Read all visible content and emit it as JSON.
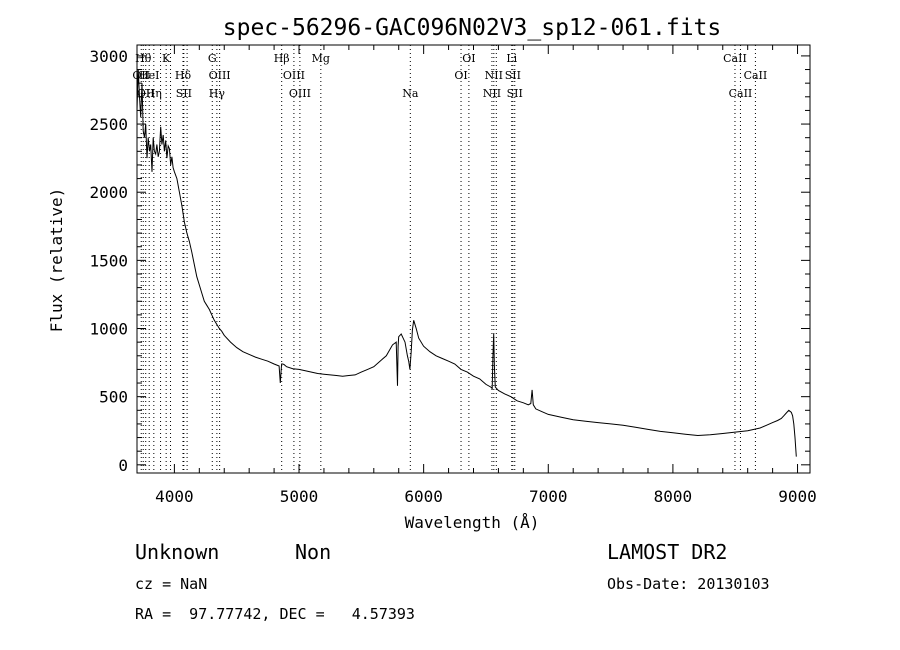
{
  "chart_data": {
    "type": "line",
    "title": "spec-56296-GAC096N02V3_sp12-061.fits",
    "xlabel": "Wavelength (Å)",
    "ylabel": "Flux (relative)",
    "xlim": [
      3700,
      9100
    ],
    "ylim": [
      -60,
      3080
    ],
    "xticks": [
      4000,
      5000,
      6000,
      7000,
      8000,
      9000
    ],
    "yticks": [
      0,
      500,
      1000,
      1500,
      2000,
      2500,
      3000
    ],
    "grid": false,
    "series": [
      {
        "x": [
          3700,
          3710,
          3720,
          3730,
          3740,
          3750,
          3760,
          3770,
          3780,
          3790,
          3800,
          3810,
          3820,
          3830,
          3840,
          3850,
          3860,
          3870,
          3880,
          3890,
          3900,
          3910,
          3920,
          3930,
          3940,
          3950,
          3960,
          3970,
          3980,
          3990,
          4000,
          4020,
          4040,
          4060,
          4080,
          4100,
          4120,
          4140,
          4160,
          4180,
          4200,
          4220,
          4240,
          4260,
          4280,
          4300,
          4320,
          4340,
          4360,
          4380,
          4400,
          4450,
          4500,
          4550,
          4600,
          4650,
          4700,
          4750,
          4800,
          4840,
          4850,
          4860,
          4870,
          4880,
          4900,
          4950,
          5000,
          5050,
          5100,
          5150,
          5200,
          5250,
          5300,
          5350,
          5400,
          5450,
          5500,
          5550,
          5600,
          5650,
          5700,
          5750,
          5780,
          5790,
          5795,
          5800,
          5820,
          5850,
          5870,
          5880,
          5890,
          5900,
          5910,
          5920,
          5940,
          5960,
          6000,
          6050,
          6100,
          6150,
          6200,
          6250,
          6300,
          6350,
          6400,
          6450,
          6500,
          6540,
          6550,
          6556,
          6562,
          6568,
          6575,
          6600,
          6650,
          6700,
          6750,
          6800,
          6840,
          6860,
          6870,
          6880,
          6900,
          6950,
          7000,
          7100,
          7200,
          7300,
          7400,
          7500,
          7600,
          7700,
          7800,
          7900,
          8000,
          8100,
          8200,
          8300,
          8400,
          8500,
          8600,
          8700,
          8750,
          8800,
          8840,
          8870,
          8890,
          8910,
          8930,
          8950,
          8960,
          8970,
          8980,
          8990
        ],
        "values": [
          2600,
          2900,
          2700,
          2550,
          2800,
          2450,
          2400,
          2500,
          2250,
          2400,
          2300,
          2350,
          2150,
          2400,
          2300,
          2280,
          2350,
          2260,
          2300,
          2480,
          2350,
          2420,
          2300,
          2380,
          2250,
          2340,
          2320,
          2200,
          2260,
          2180,
          2150,
          2100,
          2000,
          1900,
          1780,
          1700,
          1640,
          1560,
          1470,
          1380,
          1320,
          1260,
          1200,
          1170,
          1140,
          1100,
          1060,
          1030,
          1000,
          980,
          950,
          900,
          860,
          830,
          810,
          790,
          775,
          760,
          740,
          725,
          600,
          740,
          740,
          735,
          720,
          705,
          700,
          690,
          680,
          670,
          665,
          660,
          655,
          650,
          655,
          660,
          680,
          700,
          720,
          760,
          800,
          880,
          900,
          580,
          870,
          940,
          960,
          900,
          800,
          760,
          700,
          830,
          990,
          1060,
          1000,
          930,
          870,
          830,
          800,
          780,
          760,
          740,
          700,
          680,
          650,
          630,
          590,
          570,
          560,
          790,
          960,
          720,
          570,
          545,
          520,
          500,
          470,
          455,
          440,
          450,
          550,
          440,
          410,
          390,
          370,
          350,
          330,
          320,
          310,
          300,
          290,
          275,
          260,
          245,
          235,
          225,
          215,
          220,
          230,
          240,
          250,
          270,
          290,
          310,
          325,
          340,
          360,
          380,
          400,
          385,
          360,
          300,
          200,
          60
        ]
      }
    ],
    "lines": [
      {
        "x": 3734,
        "label": "OII",
        "row": 2
      },
      {
        "x": 3750,
        "label": "Hθ",
        "row": 1
      },
      {
        "x": 3770,
        "label": "OII",
        "row": 3
      },
      {
        "x": 3798,
        "label": "HeI",
        "row": 2
      },
      {
        "x": 3835,
        "label": "Hη",
        "row": 3
      },
      {
        "x": 3889,
        "label": "",
        "row": 0
      },
      {
        "x": 3934,
        "label": "K",
        "row": 1
      },
      {
        "x": 3969,
        "label": "",
        "row": 0
      },
      {
        "x": 4069,
        "label": "Hδ",
        "row": 2
      },
      {
        "x": 4076,
        "label": "SII",
        "row": 3
      },
      {
        "x": 4102,
        "label": "",
        "row": 0
      },
      {
        "x": 4304,
        "label": "G",
        "row": 1
      },
      {
        "x": 4341,
        "label": "Hγ",
        "row": 3
      },
      {
        "x": 4363,
        "label": "OIII",
        "row": 2
      },
      {
        "x": 4861,
        "label": "Hβ",
        "row": 1
      },
      {
        "x": 4959,
        "label": "OIII",
        "row": 2
      },
      {
        "x": 5007,
        "label": "OIII",
        "row": 3
      },
      {
        "x": 5175,
        "label": "Mg",
        "row": 1
      },
      {
        "x": 5893,
        "label": "Na",
        "row": 3
      },
      {
        "x": 6300,
        "label": "OI",
        "row": 2
      },
      {
        "x": 6363,
        "label": "OI",
        "row": 1
      },
      {
        "x": 6548,
        "label": "NII",
        "row": 3
      },
      {
        "x": 6563,
        "label": "NII",
        "row": 2
      },
      {
        "x": 6583,
        "label": "",
        "row": 0
      },
      {
        "x": 6707,
        "label": "Li",
        "row": 1
      },
      {
        "x": 6716,
        "label": "SII",
        "row": 2
      },
      {
        "x": 6731,
        "label": "SII",
        "row": 3
      },
      {
        "x": 8498,
        "label": "CaII",
        "row": 1
      },
      {
        "x": 8542,
        "label": "CaII",
        "row": 3
      },
      {
        "x": 8662,
        "label": "CaII",
        "row": 2
      }
    ]
  },
  "info": {
    "class": "Unknown",
    "subclass": "Non",
    "survey": "LAMOST DR2",
    "cz": "cz = NaN",
    "obs_date": "Obs-Date: 20130103",
    "coords": "RA =  97.77742, DEC =   4.57393"
  }
}
